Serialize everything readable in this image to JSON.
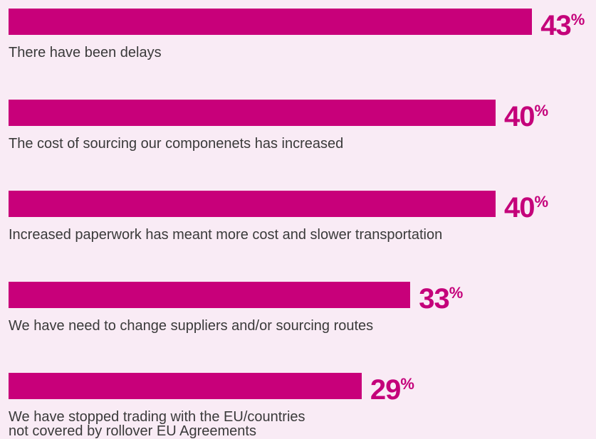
{
  "chart_data": {
    "type": "bar",
    "orientation": "horizontal",
    "color": "#c8007a",
    "categories": [
      "There have been delays",
      "The cost of sourcing our componenets has increased",
      "Increased paperwork has meant more cost and slower transportation",
      "We have need to change suppliers and/or sourcing routes",
      "We have stopped trading with the EU/countries\nnot covered by rollover EU Agreements"
    ],
    "values": [
      43,
      40,
      40,
      33,
      29
    ],
    "value_labels": [
      "43%",
      "40%",
      "40%",
      "33%",
      "29%"
    ]
  }
}
